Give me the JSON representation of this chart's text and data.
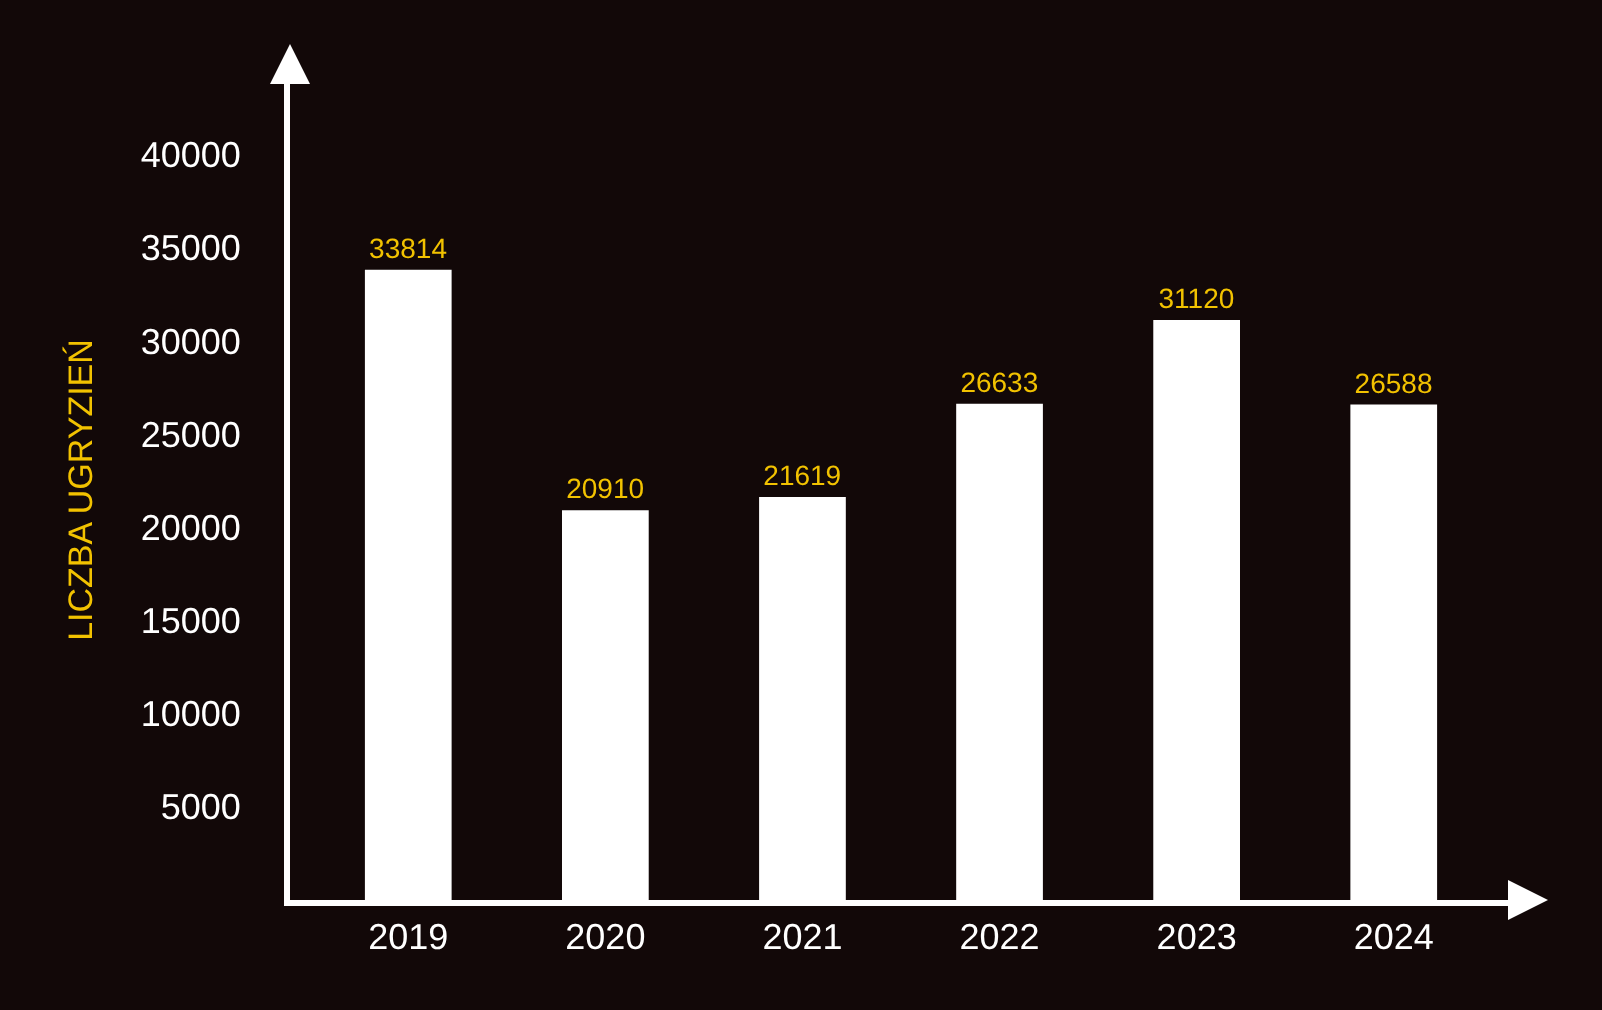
{
  "chart_data": {
    "type": "bar",
    "categories": [
      "2019",
      "2020",
      "2021",
      "2022",
      "2023",
      "2024"
    ],
    "values": [
      33814,
      20910,
      21619,
      26633,
      31120,
      26588
    ],
    "color": "#ffffff",
    "ylabel": "LICZBA UGRYZIEŃ",
    "ylim": [
      0,
      44000
    ],
    "yticks": [
      5000,
      10000,
      15000,
      20000,
      25000,
      30000,
      35000,
      40000
    ],
    "data_labels": true
  }
}
